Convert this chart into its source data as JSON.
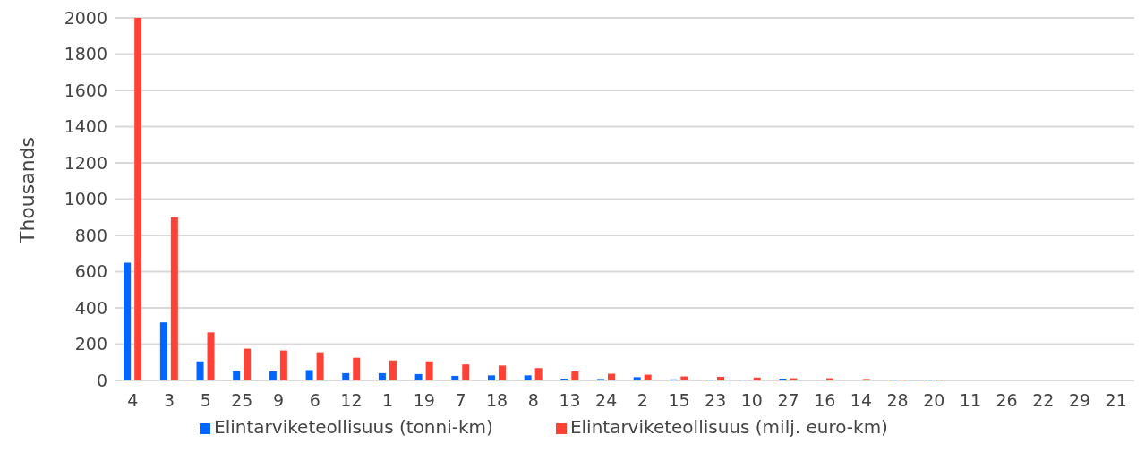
{
  "chart_data": {
    "type": "bar",
    "ylabel": "Thousands",
    "categories": [
      "4",
      "3",
      "5",
      "25",
      "9",
      "6",
      "12",
      "1",
      "19",
      "7",
      "18",
      "8",
      "13",
      "24",
      "2",
      "15",
      "23",
      "10",
      "27",
      "16",
      "14",
      "28",
      "20",
      "11",
      "26",
      "22",
      "29",
      "21"
    ],
    "series": [
      {
        "name": "Elintarviketeollisuus (tonni-km)",
        "color": "#0066ff",
        "values": [
          650,
          320,
          105,
          50,
          50,
          57,
          40,
          40,
          35,
          25,
          28,
          28,
          10,
          8,
          18,
          6,
          4,
          3,
          10,
          null,
          null,
          4,
          4,
          0,
          0,
          0,
          0,
          0
        ]
      },
      {
        "name": "Elintarviketeollisuus (milj. euro-km)",
        "color": "#ff4136",
        "values": [
          2000,
          900,
          265,
          175,
          165,
          155,
          125,
          110,
          105,
          88,
          82,
          68,
          50,
          37,
          32,
          22,
          20,
          16,
          12,
          12,
          8,
          4,
          4,
          0,
          0,
          0,
          0,
          0
        ]
      }
    ],
    "ylim": [
      0,
      2000
    ],
    "yticks": [
      0,
      200,
      400,
      600,
      800,
      1000,
      1200,
      1400,
      1600,
      1800,
      2000
    ],
    "grid": "y",
    "legend": "bottom"
  }
}
